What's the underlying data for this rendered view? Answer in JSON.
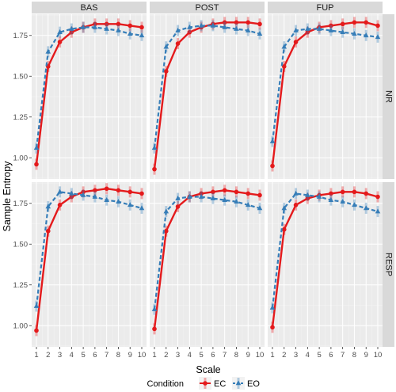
{
  "chart_data": {
    "type": "line",
    "xlabel": "Scale",
    "ylabel": "Sample Entropy",
    "x": [
      1,
      2,
      3,
      4,
      5,
      6,
      7,
      8,
      9,
      10
    ],
    "xticks": [
      "1",
      "2",
      "3",
      "4",
      "5",
      "6",
      "7",
      "8",
      "9",
      "10"
    ],
    "ylim": [
      0.87,
      1.88
    ],
    "yticks": [
      "1.00",
      "1.25",
      "1.50",
      "1.75"
    ],
    "grid": true,
    "legend": {
      "title": "Condition",
      "position": "bottom",
      "entries": [
        "EC",
        "EO"
      ]
    },
    "colors": {
      "EC": "#e41a1c",
      "EO": "#377eb8"
    },
    "columns": [
      "BAS",
      "POST",
      "FUP"
    ],
    "rows": [
      "NR",
      "RESP"
    ],
    "panels": [
      {
        "column": "BAS",
        "row": "NR",
        "series": [
          {
            "name": "EC",
            "values": [
              0.96,
              1.56,
              1.71,
              1.77,
              1.8,
              1.82,
              1.82,
              1.82,
              1.81,
              1.8
            ]
          },
          {
            "name": "EO",
            "values": [
              1.06,
              1.65,
              1.77,
              1.79,
              1.8,
              1.8,
              1.79,
              1.78,
              1.76,
              1.75
            ]
          }
        ]
      },
      {
        "column": "POST",
        "row": "NR",
        "series": [
          {
            "name": "EC",
            "values": [
              0.93,
              1.53,
              1.7,
              1.77,
              1.8,
              1.82,
              1.83,
              1.83,
              1.83,
              1.82
            ]
          },
          {
            "name": "EO",
            "values": [
              1.06,
              1.68,
              1.78,
              1.8,
              1.81,
              1.81,
              1.8,
              1.79,
              1.78,
              1.76
            ]
          }
        ]
      },
      {
        "column": "FUP",
        "row": "NR",
        "series": [
          {
            "name": "EC",
            "values": [
              0.95,
              1.56,
              1.71,
              1.77,
              1.8,
              1.81,
              1.82,
              1.83,
              1.83,
              1.81
            ]
          },
          {
            "name": "EO",
            "values": [
              1.1,
              1.68,
              1.78,
              1.79,
              1.79,
              1.78,
              1.77,
              1.76,
              1.75,
              1.74
            ]
          }
        ]
      },
      {
        "column": "BAS",
        "row": "RESP",
        "series": [
          {
            "name": "EC",
            "values": [
              0.97,
              1.58,
              1.74,
              1.79,
              1.82,
              1.83,
              1.84,
              1.83,
              1.82,
              1.81
            ]
          },
          {
            "name": "EO",
            "values": [
              1.12,
              1.73,
              1.82,
              1.81,
              1.8,
              1.79,
              1.77,
              1.76,
              1.74,
              1.72
            ]
          }
        ]
      },
      {
        "column": "POST",
        "row": "RESP",
        "series": [
          {
            "name": "EC",
            "values": [
              0.98,
              1.58,
              1.73,
              1.79,
              1.81,
              1.82,
              1.83,
              1.82,
              1.81,
              1.8
            ]
          },
          {
            "name": "EO",
            "values": [
              1.1,
              1.7,
              1.78,
              1.79,
              1.79,
              1.78,
              1.77,
              1.76,
              1.74,
              1.72
            ]
          }
        ]
      },
      {
        "column": "FUP",
        "row": "RESP",
        "series": [
          {
            "name": "EC",
            "values": [
              0.99,
              1.59,
              1.74,
              1.78,
              1.8,
              1.81,
              1.82,
              1.82,
              1.81,
              1.79
            ]
          },
          {
            "name": "EO",
            "values": [
              1.11,
              1.72,
              1.81,
              1.8,
              1.79,
              1.77,
              1.76,
              1.74,
              1.72,
              1.7
            ]
          }
        ]
      }
    ]
  }
}
